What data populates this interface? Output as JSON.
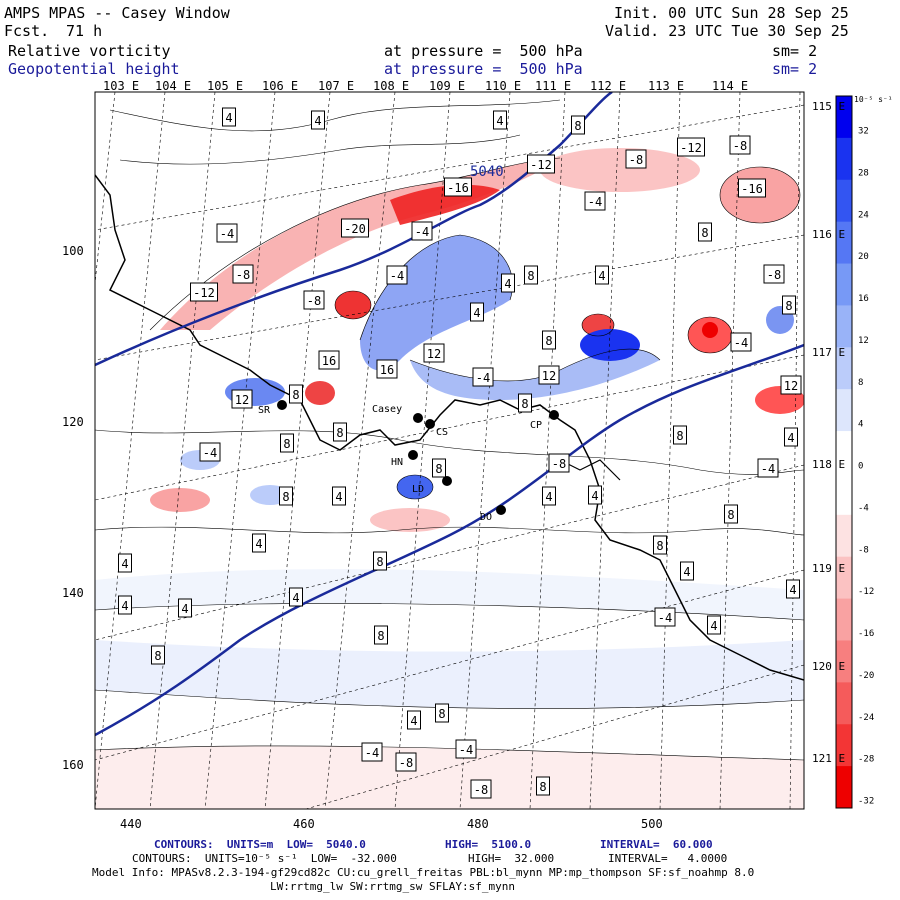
{
  "header": {
    "title": "AMPS MPAS -- Casey Window",
    "fcst_label": "Fcst.",
    "fcst_value": "71 h",
    "init": "Init. 00 UTC Sun 28 Sep 25",
    "valid": "Valid. 23 UTC Tue 30 Sep 25"
  },
  "fields": [
    {
      "name": "Relative vorticity",
      "level": "at pressure =  500 hPa",
      "sm": "sm= 2"
    },
    {
      "name": "Geopotential height",
      "level": "at pressure =  500 hPa",
      "sm": "sm= 2"
    }
  ],
  "map": {
    "top_longitudes": [
      "103 E",
      "104 E",
      "105 E",
      "106 E",
      "107 E",
      "108 E",
      "109 E",
      "110 E",
      "111 E",
      "112 E",
      "113 E",
      "114 E"
    ],
    "right_longitudes": [
      "115 E",
      "116 E",
      "117 E",
      "118 E",
      "119 E",
      "120 E",
      "121 E"
    ],
    "x_ticks": [
      "440",
      "460",
      "480",
      "500"
    ],
    "y_ticks": [
      "100",
      "120",
      "140",
      "160"
    ],
    "stations": [
      "SR",
      "Casey",
      "CS",
      "HN",
      "CP",
      "LD",
      "DO"
    ],
    "height_label": "5040",
    "vort_labels": [
      "4",
      "4",
      "4",
      "8",
      "-12",
      "-12",
      "-8",
      "-8",
      "-16",
      "-16",
      "-4",
      "-4",
      "-20",
      "-4",
      "8",
      "8",
      "4",
      "-8",
      "-12",
      "-8",
      "-8",
      "-4",
      "4",
      "4",
      "8",
      "16",
      "12",
      "16",
      "8",
      "-4",
      "12",
      "8",
      "-4",
      "12",
      "12",
      "8",
      "4",
      "8",
      "8",
      "8",
      "-4",
      "-8",
      "-4",
      "8",
      "8",
      "4",
      "4",
      "4",
      "8",
      "4",
      "4",
      "8",
      "8",
      "4",
      "4",
      "4",
      "4",
      "8",
      "4",
      "-4",
      "4",
      "8",
      "8",
      "4",
      "-4",
      "-8",
      "-4",
      "-8",
      "8"
    ]
  },
  "colorbar": {
    "unit": "10⁻⁵ s⁻¹",
    "labels": [
      "32",
      "28",
      "24",
      "20",
      "16",
      "12",
      "8",
      "4",
      "0",
      "-4",
      "-8",
      "-12",
      "-16",
      "-20",
      "-24",
      "-28",
      "-32"
    ],
    "colors": [
      "#0000ee",
      "#1a33f0",
      "#3355f2",
      "#5577f4",
      "#7799f6",
      "#99b3f8",
      "#bbccfa",
      "#dde6fc",
      "#ffffff",
      "#ffffff",
      "#fde2e2",
      "#fbc2c2",
      "#f9a2a2",
      "#f77f7f",
      "#f55b5b",
      "#f33535",
      "#ee0000"
    ]
  },
  "footer": {
    "line1_a": "CONTOURS:  UNITS=m  LOW=  5040.0",
    "line1_b": "HIGH=  5100.0",
    "line1_c": "INTERVAL=  60.000",
    "line2_a": "CONTOURS:  UNITS=10⁻⁵ s⁻¹  LOW=  -32.000",
    "line2_b": "HIGH=  32.000",
    "line2_c": "INTERVAL=   4.0000",
    "line3": "Model Info: MPASv8.2.3-194-gf29cd82c CU:cu_grell_freitas PBL:bl_mynn MP:mp_thompson SF:sf_noahmp 8.0",
    "line4": "LW:rrtmg_lw SW:rrtmg_sw SFLAY:sf_mynn"
  }
}
